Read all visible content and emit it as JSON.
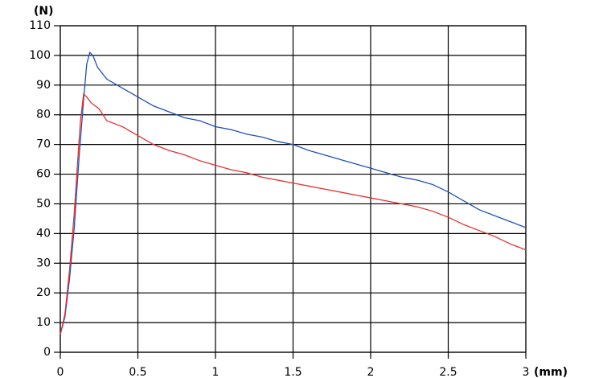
{
  "chart_data": {
    "type": "line",
    "ylabel": "(N)",
    "xlabel": "(mm)",
    "xlim": [
      0,
      3
    ],
    "xticks": [
      0,
      0.5,
      1,
      1.5,
      2,
      2.5,
      3
    ],
    "ylim": [
      0,
      110
    ],
    "yticks": [
      0,
      10,
      20,
      30,
      40,
      50,
      60,
      70,
      80,
      90,
      100,
      110
    ],
    "grid": true,
    "series": [
      {
        "color": "#2050b8",
        "x": [
          0,
          0.03,
          0.06,
          0.09,
          0.12,
          0.15,
          0.17,
          0.19,
          0.21,
          0.24,
          0.3,
          0.4,
          0.5,
          0.6,
          0.7,
          0.8,
          0.9,
          1.0,
          1.1,
          1.2,
          1.3,
          1.4,
          1.5,
          1.6,
          1.7,
          1.8,
          1.9,
          2.0,
          2.1,
          2.2,
          2.3,
          2.4,
          2.5,
          2.6,
          2.7,
          2.8,
          2.9,
          3.0
        ],
        "values": [
          6,
          12,
          25,
          42,
          65,
          85,
          97,
          101,
          100,
          96,
          92,
          89,
          86,
          83,
          81,
          79,
          78,
          76,
          75,
          73.5,
          72.5,
          71,
          70,
          68,
          66.5,
          65,
          63.5,
          62,
          60.5,
          59,
          58,
          56.5,
          54,
          51,
          48,
          46,
          44,
          42
        ]
      },
      {
        "color": "#e83030",
        "x": [
          0,
          0.03,
          0.06,
          0.09,
          0.11,
          0.13,
          0.15,
          0.17,
          0.2,
          0.25,
          0.3,
          0.35,
          0.4,
          0.5,
          0.6,
          0.7,
          0.8,
          0.9,
          1.0,
          1.1,
          1.2,
          1.3,
          1.4,
          1.5,
          1.6,
          1.7,
          1.8,
          1.9,
          2.0,
          2.1,
          2.2,
          2.3,
          2.4,
          2.5,
          2.6,
          2.7,
          2.8,
          2.9,
          3.0
        ],
        "values": [
          6,
          13,
          28,
          47,
          63,
          78,
          87,
          86,
          84,
          82,
          78,
          77,
          76,
          73,
          70,
          68,
          66.5,
          64.5,
          63,
          61.5,
          60.5,
          59,
          58,
          57,
          56,
          55,
          54,
          53,
          52,
          51,
          50,
          49,
          47.5,
          45.5,
          43,
          41,
          39,
          36.5,
          34.5
        ]
      }
    ]
  }
}
